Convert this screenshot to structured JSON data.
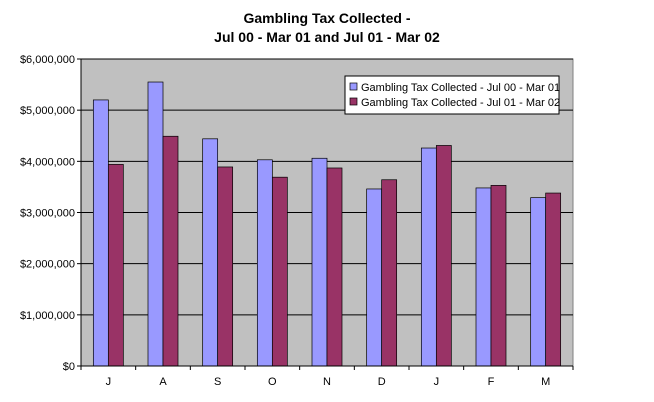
{
  "title_line1": "Gambling Tax Collected -",
  "title_line2": "Jul 00 - Mar 01 and Jul 01 - Mar 02",
  "chart_data": {
    "type": "bar",
    "title": "Gambling Tax Collected - Jul 00 - Mar 01 and Jul 01 - Mar 02",
    "categories": [
      "J",
      "A",
      "S",
      "O",
      "N",
      "D",
      "J",
      "F",
      "M"
    ],
    "series": [
      {
        "name": "Gambling Tax Collected - Jul 00 - Mar 01",
        "color": "#9999ff",
        "values": [
          5200000,
          5550000,
          4440000,
          4030000,
          4060000,
          3460000,
          4260000,
          3480000,
          3290000
        ]
      },
      {
        "name": "Gambling Tax Collected - Jul 01 - Mar 02",
        "color": "#993366",
        "values": [
          3940000,
          4490000,
          3890000,
          3690000,
          3870000,
          3640000,
          4310000,
          3530000,
          3380000
        ]
      }
    ],
    "y_ticks": [
      "$0",
      "$1,000,000",
      "$2,000,000",
      "$3,000,000",
      "$4,000,000",
      "$5,000,000",
      "$6,000,000"
    ],
    "ylim": [
      0,
      6000000
    ],
    "grid": true,
    "plot_background": "#c0c0c0",
    "legend_position": "top-right"
  }
}
